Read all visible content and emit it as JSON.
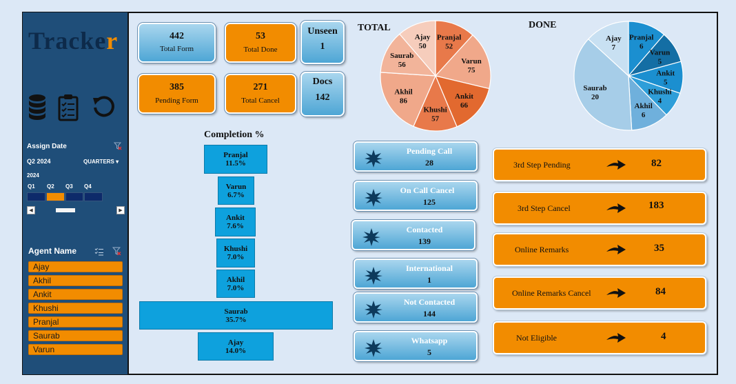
{
  "logo": {
    "main": "Tracke",
    "accent": "r"
  },
  "sidebar": {
    "icons": [
      "database-icon",
      "clipboard-icon",
      "refresh-icon"
    ],
    "date_slicer": {
      "title": "Assign Date",
      "period": "Q2 2024",
      "granularity": "QUARTERS ▾",
      "year": "2024",
      "quarters": [
        "Q1",
        "Q2",
        "Q3",
        "Q4"
      ],
      "selected_quarter": "Q2",
      "scroll_left": "◀",
      "scroll_right": "▶"
    },
    "agent_slicer": {
      "title": "Agent Name",
      "items": [
        "Ajay",
        "Akhil",
        "Ankit",
        "Khushi",
        "Pranjal",
        "Saurab",
        "Varun"
      ]
    }
  },
  "kpis": {
    "total_form": {
      "value": "442",
      "label": "Total Form"
    },
    "total_done": {
      "value": "53",
      "label": "Total Done"
    },
    "pending_form": {
      "value": "385",
      "label": "Pending Form"
    },
    "total_cancel": {
      "value": "271",
      "label": "Total Cancel"
    },
    "unseen": {
      "label": "Unseen",
      "value": "1"
    },
    "docs": {
      "label": "Docs",
      "value": "142"
    }
  },
  "completion": {
    "title": "Completion %",
    "items": [
      {
        "name": "Pranjal",
        "pct": "11.5%",
        "value": 11.5
      },
      {
        "name": "Varun",
        "pct": "6.7%",
        "value": 6.7
      },
      {
        "name": "Ankit",
        "pct": "7.6%",
        "value": 7.6
      },
      {
        "name": "Khushi",
        "pct": "7.0%",
        "value": 7.0
      },
      {
        "name": "Akhil",
        "pct": "7.0%",
        "value": 7.0
      },
      {
        "name": "Saurab",
        "pct": "35.7%",
        "value": 35.7
      },
      {
        "name": "Ajay",
        "pct": "14.0%",
        "value": 14.0
      }
    ]
  },
  "chart_data": [
    {
      "type": "pie",
      "title": "TOTAL",
      "categories": [
        "Pranjal",
        "Varun",
        "Ankit",
        "Khushi",
        "Akhil",
        "Saurab",
        "Ajay"
      ],
      "values": [
        52,
        75,
        66,
        57,
        86,
        56,
        50
      ],
      "colors": [
        "#e8794a",
        "#f0a88a",
        "#e2692f",
        "#e8794a",
        "#f0a88a",
        "#f2b49a",
        "#f6cdbc"
      ]
    },
    {
      "type": "pie",
      "title": "DONE",
      "categories": [
        "Pranjal",
        "Varun",
        "Ankit",
        "Khushi",
        "Akhil",
        "Saurab",
        "Ajay"
      ],
      "values": [
        6,
        5,
        5,
        4,
        6,
        20,
        7
      ],
      "colors": [
        "#1b8fd0",
        "#146ea4",
        "#1b8fd0",
        "#2e9ed9",
        "#6fb0dc",
        "#a6cde8",
        "#c8e0f2"
      ]
    }
  ],
  "status": [
    {
      "label": "Pending Call",
      "value": "28"
    },
    {
      "label": "On Call Cancel",
      "value": "125"
    },
    {
      "label": "Contacted",
      "value": "139"
    },
    {
      "label": "International",
      "value": "1"
    },
    {
      "label": "Not Contacted",
      "value": "144"
    },
    {
      "label": "Whatsapp",
      "value": "5"
    }
  ],
  "steps": [
    {
      "label": "3rd Step Pending",
      "value": "82"
    },
    {
      "label": "3rd Step Cancel",
      "value": "183"
    },
    {
      "label": "Online Remarks",
      "value": "35"
    },
    {
      "label": "Online Remarks Cancel",
      "value": "84"
    },
    {
      "label": "Not Eligible",
      "value": "4"
    }
  ]
}
